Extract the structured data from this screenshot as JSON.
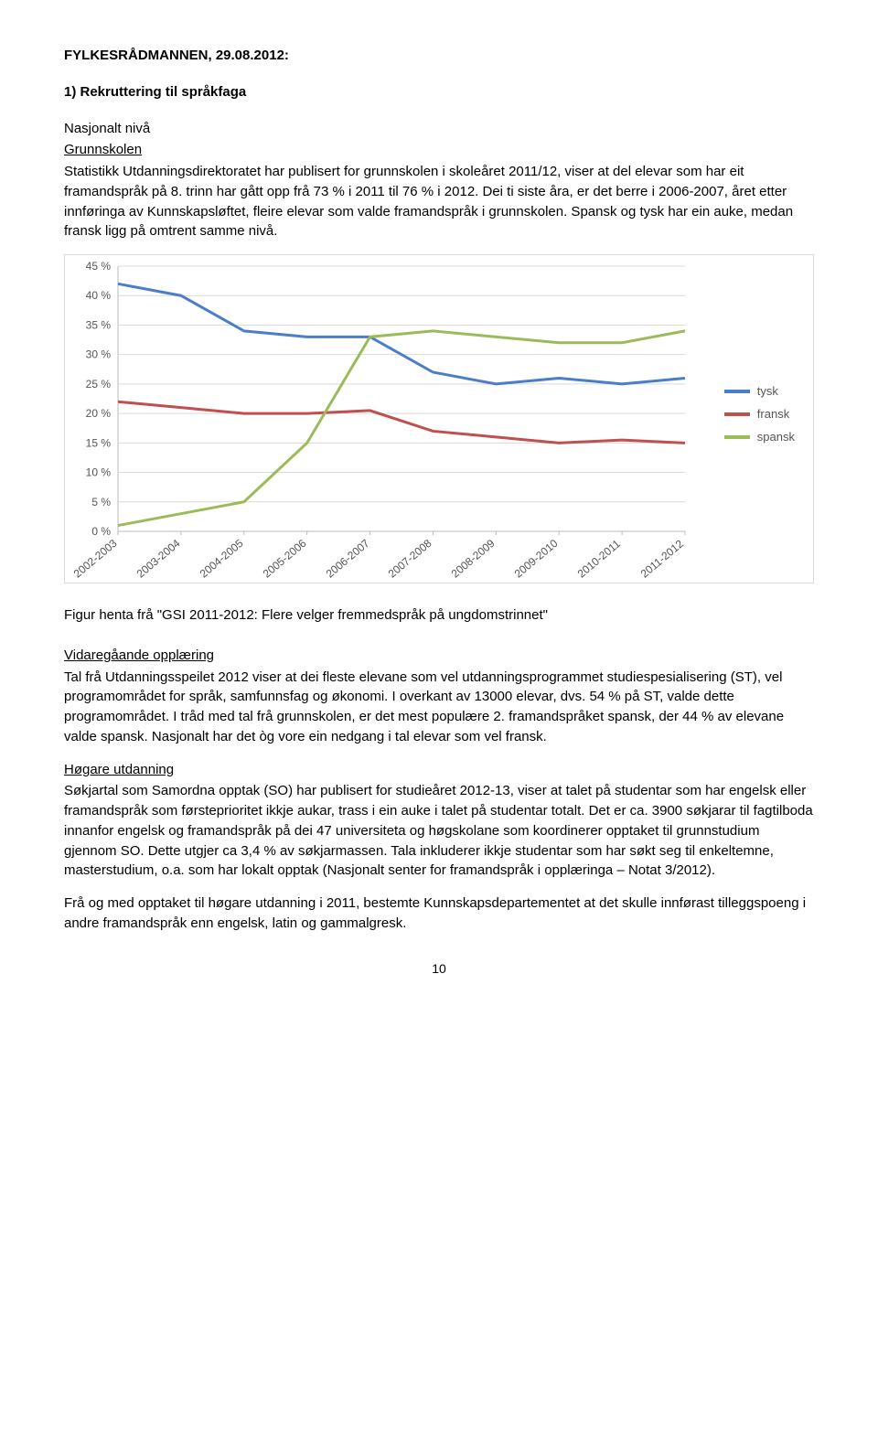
{
  "header": "FYLKESRÅDMANNEN, 29.08.2012:",
  "heading1": "1) Rekruttering til språkfaga",
  "level_national": "Nasjonalt nivå",
  "sub_grunnskolen": "Grunnskolen",
  "para1": "Statistikk Utdanningsdirektoratet har publisert for grunnskolen i skoleåret 2011/12, viser at del elevar som har eit framandspråk på 8. trinn har gått opp frå 73 % i 2011 til 76 % i 2012. Dei ti siste åra, er det berre i 2006-2007, året etter innføringa av Kunnskapsløftet, fleire elevar som valde framandspråk i grunnskolen. Spansk og tysk har ein auke, medan fransk ligg på omtrent samme nivå.",
  "chart": {
    "type": "line",
    "x_labels": [
      "2002-2003",
      "2003-2004",
      "2004-2005",
      "2005-2006",
      "2006-2007",
      "2007-2008",
      "2008-2009",
      "2009-2010",
      "2010-2011",
      "2011-2012"
    ],
    "y_ticks": [
      "0 %",
      "5 %",
      "10 %",
      "15 %",
      "20 %",
      "25 %",
      "30 %",
      "35 %",
      "40 %",
      "45 %"
    ],
    "y_max": 45,
    "series": [
      {
        "name": "tysk",
        "color": "#4a7ec8",
        "width": 3,
        "values": [
          42,
          40,
          34,
          33,
          33,
          27,
          25,
          26,
          25,
          26
        ]
      },
      {
        "name": "fransk",
        "color": "#c0504d",
        "width": 3,
        "values": [
          22,
          21,
          20,
          20,
          20.5,
          17,
          16,
          15,
          15.5,
          15
        ]
      },
      {
        "name": "spansk",
        "color": "#9bbb59",
        "width": 3,
        "values": [
          1,
          3,
          5,
          15,
          33,
          34,
          33,
          32,
          32,
          34
        ]
      }
    ],
    "grid_color": "#d9d9d9",
    "background": "#ffffff"
  },
  "caption": "Figur henta frå \"GSI 2011-2012: Flere velger fremmedspråk på ungdomstrinnet\"",
  "sub_vgo": "Vidaregåande opplæring",
  "para2": "Tal frå Utdanningsspeilet 2012 viser at dei fleste elevane som vel utdanningsprogrammet studiespesialisering (ST), vel programområdet for språk, samfunnsfag og økonomi. I overkant av 13000 elevar, dvs. 54 % på ST, valde dette programområdet. I tråd med tal frå grunnskolen, er det mest populære 2. framandspråket spansk, der 44 % av elevane valde spansk. Nasjonalt har det òg vore ein nedgang i tal elevar som vel fransk.",
  "sub_hog": "Høgare utdanning",
  "para3": "Søkjartal som Samordna opptak (SO) har publisert for studieåret 2012-13, viser at talet på studentar som har engelsk eller framandspråk som førsteprioritet ikkje aukar, trass i ein auke i talet på studentar totalt. Det er ca. 3900 søkjarar til fagtilboda innanfor engelsk og framandspråk på dei 47 universiteta og høgskolane som koordinerer opptaket til grunnstudium gjennom SO. Dette utgjer ca 3,4 % av søkjarmassen. Tala inkluderer ikkje studentar som har søkt seg til enkeltemne, masterstudium, o.a. som har lokalt opptak (Nasjonalt senter for framandspråk i opplæringa – Notat 3/2012).",
  "para4": "Frå og med opptaket til høgare utdanning i 2011, bestemte Kunnskapsdepartementet at det skulle innførast tilleggspoeng i andre framandspråk enn engelsk, latin og gammalgresk.",
  "page_num": "10"
}
